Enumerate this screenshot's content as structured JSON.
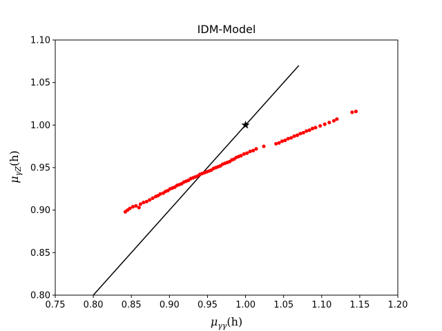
{
  "chart_data": {
    "type": "scatter",
    "title": "IDM-Model",
    "xlabel_main": "μ",
    "xlabel_sub": "γγ",
    "xlabel_tail": "(h)",
    "ylabel_main": "μ",
    "ylabel_sub": "γZ",
    "ylabel_tail": "(h)",
    "xlim": [
      0.75,
      1.2
    ],
    "ylim": [
      0.8,
      1.1
    ],
    "xticks": [
      "0.75",
      "0.80",
      "0.85",
      "0.90",
      "0.95",
      "1.00",
      "1.05",
      "1.10",
      "1.15",
      "1.20"
    ],
    "yticks": [
      "0.80",
      "0.85",
      "0.90",
      "0.95",
      "1.00",
      "1.05",
      "1.10"
    ],
    "grid": false,
    "colors": {
      "points": "#ff0000",
      "line": "#000000",
      "star": "#000000"
    },
    "reference_line": {
      "x": [
        0.8,
        1.07
      ],
      "y": [
        0.8,
        1.07
      ]
    },
    "sm_point": {
      "x": 1.0,
      "y": 1.0,
      "marker": "star"
    },
    "scatter_points": [
      [
        0.842,
        0.898
      ],
      [
        0.845,
        0.9
      ],
      [
        0.848,
        0.902
      ],
      [
        0.852,
        0.904
      ],
      [
        0.856,
        0.905
      ],
      [
        0.86,
        0.903
      ],
      [
        0.862,
        0.907
      ],
      [
        0.866,
        0.909
      ],
      [
        0.87,
        0.91
      ],
      [
        0.874,
        0.912
      ],
      [
        0.878,
        0.914
      ],
      [
        0.882,
        0.916
      ],
      [
        0.885,
        0.917
      ],
      [
        0.888,
        0.919
      ],
      [
        0.892,
        0.92
      ],
      [
        0.895,
        0.922
      ],
      [
        0.898,
        0.923
      ],
      [
        0.901,
        0.925
      ],
      [
        0.904,
        0.926
      ],
      [
        0.907,
        0.927
      ],
      [
        0.91,
        0.929
      ],
      [
        0.913,
        0.93
      ],
      [
        0.916,
        0.931
      ],
      [
        0.919,
        0.933
      ],
      [
        0.922,
        0.934
      ],
      [
        0.925,
        0.935
      ],
      [
        0.928,
        0.937
      ],
      [
        0.931,
        0.938
      ],
      [
        0.934,
        0.939
      ],
      [
        0.937,
        0.94
      ],
      [
        0.94,
        0.942
      ],
      [
        0.943,
        0.943
      ],
      [
        0.946,
        0.944
      ],
      [
        0.949,
        0.945
      ],
      [
        0.952,
        0.946
      ],
      [
        0.955,
        0.947
      ],
      [
        0.958,
        0.949
      ],
      [
        0.961,
        0.95
      ],
      [
        0.964,
        0.951
      ],
      [
        0.967,
        0.952
      ],
      [
        0.97,
        0.954
      ],
      [
        0.973,
        0.955
      ],
      [
        0.976,
        0.956
      ],
      [
        0.979,
        0.957
      ],
      [
        0.982,
        0.959
      ],
      [
        0.985,
        0.96
      ],
      [
        0.988,
        0.962
      ],
      [
        0.991,
        0.963
      ],
      [
        0.994,
        0.964
      ],
      [
        0.998,
        0.966
      ],
      [
        1.002,
        0.967
      ],
      [
        1.006,
        0.969
      ],
      [
        1.01,
        0.97
      ],
      [
        1.014,
        0.972
      ],
      [
        1.024,
        0.975
      ],
      [
        1.04,
        0.978
      ],
      [
        1.044,
        0.979
      ],
      [
        1.048,
        0.981
      ],
      [
        1.052,
        0.982
      ],
      [
        1.056,
        0.984
      ],
      [
        1.06,
        0.985
      ],
      [
        1.064,
        0.987
      ],
      [
        1.068,
        0.988
      ],
      [
        1.072,
        0.99
      ],
      [
        1.076,
        0.991
      ],
      [
        1.08,
        0.993
      ],
      [
        1.084,
        0.994
      ],
      [
        1.088,
        0.996
      ],
      [
        1.092,
        0.997
      ],
      [
        1.098,
        0.999
      ],
      [
        1.104,
        1.001
      ],
      [
        1.11,
        1.003
      ],
      [
        1.116,
        1.005
      ],
      [
        1.12,
        1.007
      ],
      [
        1.14,
        1.015
      ],
      [
        1.145,
        1.016
      ]
    ]
  }
}
